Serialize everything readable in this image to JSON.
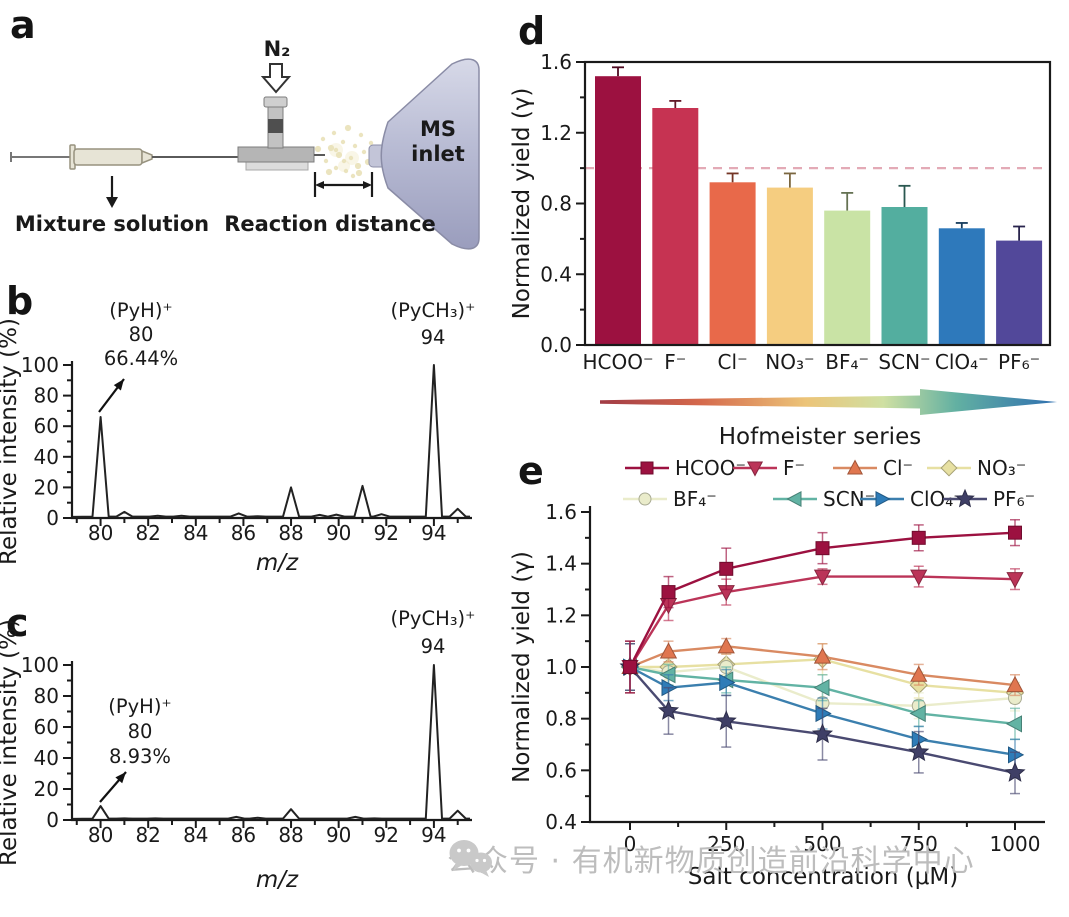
{
  "panel_a": {
    "label": "a",
    "n2": "N₂",
    "mixture": "Mixture solution",
    "reaction": "Reaction distance",
    "ms_line1": "MS",
    "ms_line2": "inlet"
  },
  "watermark": {
    "icon": "wechat-icon",
    "text": "公众号 · 有机新物质创造前沿科学中心"
  },
  "chart_data": [
    {
      "id": "b",
      "panel_label": "b",
      "type": "line",
      "kind": "mass-spectrum",
      "xlabel": "m/z",
      "ylabel": "Relative intensity (%)",
      "xlim": [
        78.8,
        95.6
      ],
      "ylim": [
        0,
        100
      ],
      "xticks": [
        80,
        82,
        84,
        86,
        88,
        90,
        92,
        94
      ],
      "yticks": [
        0,
        20,
        40,
        60,
        80,
        100
      ],
      "line_color": "#222222",
      "peaks": [
        [
          80,
          66
        ],
        [
          81,
          4
        ],
        [
          82.4,
          1.5
        ],
        [
          83.4,
          1.5
        ],
        [
          85.8,
          3
        ],
        [
          86.6,
          1.2
        ],
        [
          88,
          20
        ],
        [
          89.2,
          2
        ],
        [
          89.9,
          2.2
        ],
        [
          91,
          21
        ],
        [
          91.8,
          2.5
        ],
        [
          94,
          100
        ],
        [
          95,
          6
        ]
      ],
      "annotations": [
        {
          "id": "pyh",
          "lines": [
            "(PyH)⁺",
            "80",
            "66.44%"
          ]
        },
        {
          "id": "pych3",
          "lines": [
            "(PyCH₃)⁺",
            "94"
          ]
        }
      ]
    },
    {
      "id": "c",
      "panel_label": "c",
      "type": "line",
      "kind": "mass-spectrum",
      "xlabel": "m/z",
      "ylabel": "Relative intensity (%)",
      "xlim": [
        78.8,
        95.6
      ],
      "ylim": [
        0,
        100
      ],
      "xticks": [
        80,
        82,
        84,
        86,
        88,
        90,
        92,
        94
      ],
      "yticks": [
        0,
        20,
        40,
        60,
        80,
        100
      ],
      "line_color": "#222222",
      "peaks": [
        [
          80,
          9
        ],
        [
          81,
          1
        ],
        [
          82.3,
          1
        ],
        [
          85.7,
          2
        ],
        [
          86.6,
          1.5
        ],
        [
          88,
          7
        ],
        [
          90.7,
          2
        ],
        [
          91.5,
          1
        ],
        [
          94,
          100
        ],
        [
          95,
          6
        ]
      ],
      "annotations": [
        {
          "id": "pyh",
          "lines": [
            "(PyH)⁺",
            "80",
            "8.93%"
          ]
        },
        {
          "id": "pych3",
          "lines": [
            "(PyCH₃)⁺",
            "94"
          ]
        }
      ]
    },
    {
      "id": "d",
      "panel_label": "d",
      "type": "bar",
      "title": "",
      "ylabel": "Normalized yield (γ)",
      "ylim": [
        0,
        1.6
      ],
      "yticks": [
        0.0,
        0.4,
        0.8,
        1.2,
        1.6
      ],
      "categories": [
        "HCOO⁻",
        "F⁻",
        "Cl⁻",
        "NO₃⁻",
        "BF₄⁻",
        "SCN⁻",
        "ClO₄⁻",
        "PF₆⁻"
      ],
      "values": [
        1.52,
        1.34,
        0.92,
        0.89,
        0.76,
        0.78,
        0.66,
        0.59
      ],
      "errors": [
        0.05,
        0.04,
        0.05,
        0.08,
        0.1,
        0.12,
        0.03,
        0.08
      ],
      "colors": [
        "#9c1140",
        "#c63352",
        "#e8694a",
        "#f5cd80",
        "#c9e3a5",
        "#53ae9f",
        "#2e79bb",
        "#52489a"
      ],
      "ref_line": 1.0,
      "ref_line_color": "#e3aab6",
      "arrow_label": "Hofmeister series",
      "arrow_gradient": [
        "#a13b45",
        "#d5694c",
        "#ecc478",
        "#cfe0a2",
        "#62b0a2",
        "#2f6fb0"
      ]
    },
    {
      "id": "e",
      "panel_label": "e",
      "type": "line",
      "xlabel": "Salt concentration (μM)",
      "ylabel": "Normalized yield (γ)",
      "x": [
        0,
        100,
        250,
        500,
        750,
        1000
      ],
      "xticks": [
        0,
        250,
        500,
        750,
        1000
      ],
      "xminor": [
        125,
        375,
        625,
        875
      ],
      "ylim": [
        0.4,
        1.6
      ],
      "yticks": [
        0.4,
        0.6,
        0.8,
        1.0,
        1.2,
        1.4,
        1.6
      ],
      "legend_position": "top",
      "series": [
        {
          "name": "HCOO⁻",
          "marker": "square",
          "color": "#9c1140",
          "values": [
            1.0,
            1.29,
            1.38,
            1.46,
            1.5,
            1.52
          ],
          "errors": [
            0.1,
            0.06,
            0.08,
            0.06,
            0.05,
            0.05
          ]
        },
        {
          "name": "F⁻",
          "marker": "triangle-down",
          "color": "#bb3458",
          "values": [
            1.0,
            1.24,
            1.29,
            1.35,
            1.35,
            1.34
          ],
          "errors": [
            0.1,
            0.06,
            0.05,
            0.03,
            0.04,
            0.04
          ]
        },
        {
          "name": "Cl⁻",
          "marker": "triangle-up",
          "color": "#d98a62",
          "marker_color": "#e0764f",
          "values": [
            1.0,
            1.06,
            1.08,
            1.04,
            0.97,
            0.93
          ],
          "errors": [
            0.09,
            0.04,
            0.03,
            0.05,
            0.04,
            0.04
          ]
        },
        {
          "name": "NO₃⁻",
          "marker": "diamond",
          "color": "#e7e0a2",
          "values": [
            1.0,
            1.0,
            1.01,
            1.03,
            0.93,
            0.9
          ],
          "errors": [
            0.09,
            0.05,
            0.04,
            0.06,
            0.05,
            0.04
          ]
        },
        {
          "name": "BF₄⁻",
          "marker": "circle",
          "color": "#eaeccb",
          "values": [
            1.0,
            0.98,
            1.0,
            0.86,
            0.85,
            0.88
          ],
          "errors": [
            0.1,
            0.05,
            0.05,
            0.05,
            0.05,
            0.05
          ]
        },
        {
          "name": "SCN⁻",
          "marker": "triangle-left",
          "color": "#62b3a4",
          "values": [
            1.0,
            0.97,
            0.95,
            0.92,
            0.82,
            0.78
          ],
          "errors": [
            0.1,
            0.04,
            0.05,
            0.05,
            0.05,
            0.06
          ]
        },
        {
          "name": "ClO₄⁻",
          "marker": "triangle-right",
          "color": "#3b7fae",
          "marker_color": "#2e7cb8",
          "values": [
            1.0,
            0.92,
            0.94,
            0.82,
            0.72,
            0.66
          ],
          "errors": [
            0.09,
            0.05,
            0.05,
            0.06,
            0.05,
            0.06
          ]
        },
        {
          "name": "PF₆⁻",
          "marker": "star",
          "color": "#4a4a71",
          "marker_color": "#3f3f66",
          "values": [
            1.0,
            0.83,
            0.79,
            0.74,
            0.67,
            0.59
          ],
          "errors": [
            0.09,
            0.09,
            0.1,
            0.1,
            0.08,
            0.08
          ]
        }
      ]
    }
  ]
}
